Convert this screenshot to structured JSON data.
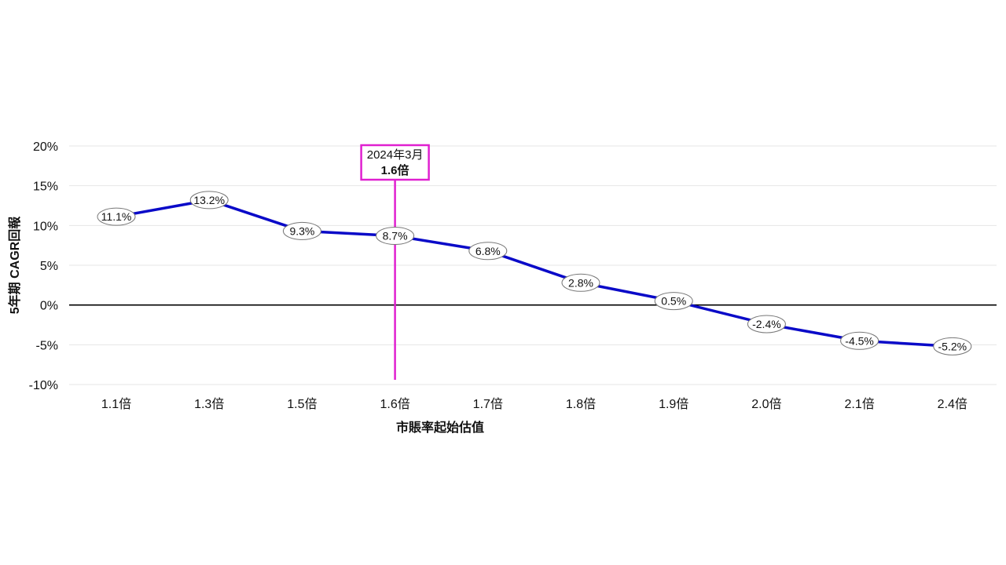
{
  "chart_data": {
    "type": "line",
    "categories": [
      "1.1倍",
      "1.3倍",
      "1.5倍",
      "1.6倍",
      "1.7倍",
      "1.8倍",
      "1.9倍",
      "2.0倍",
      "2.1倍",
      "2.4倍"
    ],
    "series": [
      {
        "values": [
          11.1,
          13.2,
          9.3,
          8.7,
          6.8,
          2.8,
          0.5,
          -2.4,
          -4.5,
          -5.2
        ],
        "labels": [
          "11.1%",
          "13.2%",
          "9.3%",
          "8.7%",
          "6.8%",
          "2.8%",
          "0.5%",
          "-2.4%",
          "-4.5%",
          "-5.2%"
        ]
      }
    ],
    "title": "",
    "xlabel": "市賬率起始估值",
    "ylabel": "5年期 CAGR回報",
    "ylim": [
      -10,
      20
    ],
    "yticks": [
      -10,
      -5,
      0,
      5,
      10,
      15,
      20
    ],
    "ytick_labels": [
      "-10%",
      "-5%",
      "0%",
      "5%",
      "10%",
      "15%",
      "20%"
    ],
    "grid": true,
    "annotation": {
      "category": "1.6倍",
      "line1": "2024年3月",
      "line2": "1.6倍"
    },
    "colors": {
      "line": "#0a0ac8",
      "marker_line": "#e020d0",
      "zero_line": "#000000",
      "grid": "#e6e6e6"
    }
  }
}
